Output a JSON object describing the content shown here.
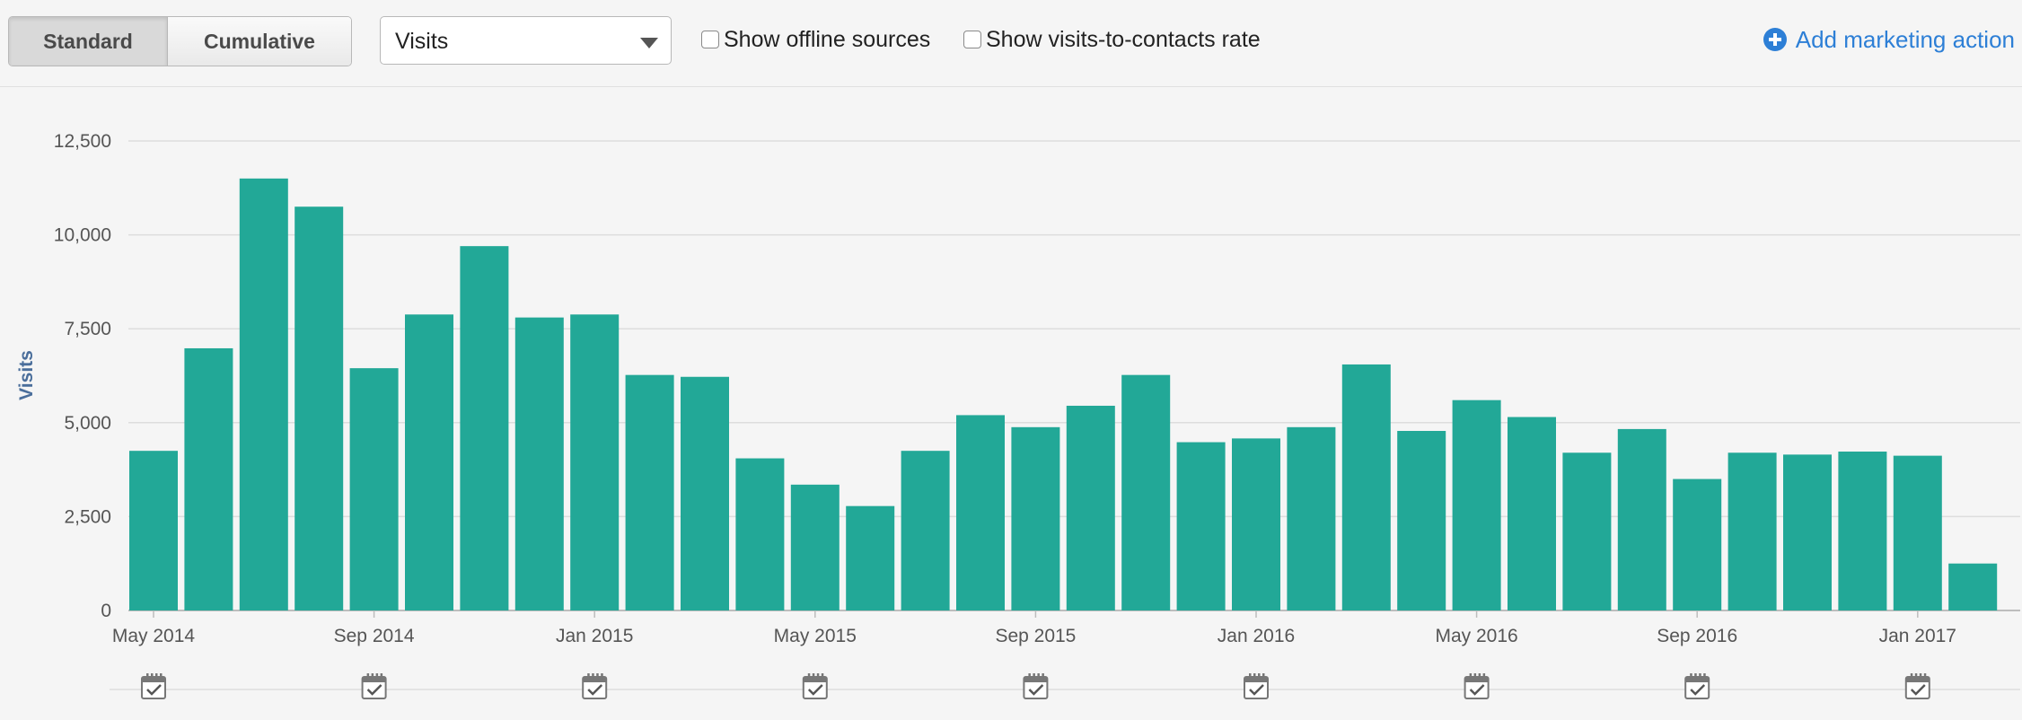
{
  "toolbar": {
    "tabs": [
      {
        "label": "Standard",
        "active": true
      },
      {
        "label": "Cumulative",
        "active": false
      }
    ],
    "metric_select": {
      "value": "Visits"
    },
    "checkboxes": [
      {
        "label": "Show offline sources",
        "checked": false
      },
      {
        "label": "Show visits-to-contacts rate",
        "checked": false
      }
    ],
    "add_action": {
      "label": "Add marketing action",
      "icon": "plus-circle-icon"
    }
  },
  "colors": {
    "bar": "#22a897",
    "link": "#2d7fd6",
    "axis_label": "#4a6e9b",
    "grid": "#dddddd"
  },
  "marker_icon": "calendar-check-icon",
  "chart_data": {
    "type": "bar",
    "ylabel": "Visits",
    "ylim": [
      0,
      12500
    ],
    "yticks": [
      "0",
      "2,500",
      "5,000",
      "7,500",
      "10,000",
      "12,500"
    ],
    "ytick_values": [
      0,
      2500,
      5000,
      7500,
      10000,
      12500
    ],
    "grid": true,
    "categories": [
      "May 2014",
      "Jun 2014",
      "Jul 2014",
      "Aug 2014",
      "Sep 2014",
      "Oct 2014",
      "Nov 2014",
      "Dec 2014",
      "Jan 2015",
      "Feb 2015",
      "Mar 2015",
      "Apr 2015",
      "May 2015",
      "Jun 2015",
      "Jul 2015",
      "Aug 2015",
      "Sep 2015",
      "Oct 2015",
      "Nov 2015",
      "Dec 2015",
      "Jan 2016",
      "Feb 2016",
      "Mar 2016",
      "Apr 2016",
      "May 2016",
      "Jun 2016",
      "Jul 2016",
      "Aug 2016",
      "Sep 2016",
      "Oct 2016",
      "Nov 2016",
      "Dec 2016",
      "Jan 2017",
      "Feb 2017"
    ],
    "x_tick_labels": [
      "May 2014",
      "Sep 2014",
      "Jan 2015",
      "May 2015",
      "Sep 2015",
      "Jan 2016",
      "May 2016",
      "Sep 2016",
      "Jan 2017"
    ],
    "x_tick_indices": [
      0,
      4,
      8,
      12,
      16,
      20,
      24,
      28,
      32
    ],
    "values": [
      4250,
      6980,
      11500,
      10750,
      6450,
      7880,
      9700,
      7800,
      7880,
      6270,
      6220,
      4050,
      3350,
      2780,
      4250,
      5200,
      4880,
      5450,
      6270,
      4480,
      4580,
      4880,
      6550,
      4780,
      5600,
      5150,
      4200,
      4830,
      3500,
      4200,
      4150,
      4230,
      4120,
      1250
    ]
  }
}
